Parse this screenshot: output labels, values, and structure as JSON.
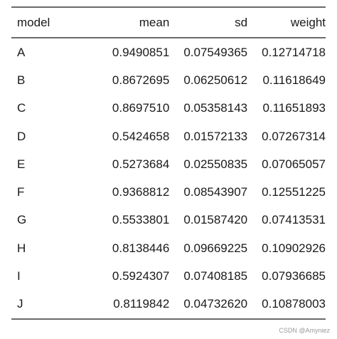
{
  "table": {
    "header": [
      "model",
      "mean",
      "sd",
      "weight"
    ],
    "rows": [
      [
        "A",
        "0.9490851",
        "0.07549365",
        "0.12714718"
      ],
      [
        "B",
        "0.8672695",
        "0.06250612",
        "0.11618649"
      ],
      [
        "C",
        "0.8697510",
        "0.05358143",
        "0.11651893"
      ],
      [
        "D",
        "0.5424658",
        "0.01572133",
        "0.07267314"
      ],
      [
        "E",
        "0.5273684",
        "0.02550835",
        "0.07065057"
      ],
      [
        "F",
        "0.9368812",
        "0.08543907",
        "0.12551225"
      ],
      [
        "G",
        "0.5533801",
        "0.01587420",
        "0.07413531"
      ],
      [
        "H",
        "0.8138446",
        "0.09669225",
        "0.10902926"
      ],
      [
        "I",
        "0.5924307",
        "0.07408185",
        "0.07936685"
      ],
      [
        "J",
        "0.8119842",
        "0.04732620",
        "0.10878003"
      ]
    ]
  },
  "watermark": "CSDN @Amyniez"
}
